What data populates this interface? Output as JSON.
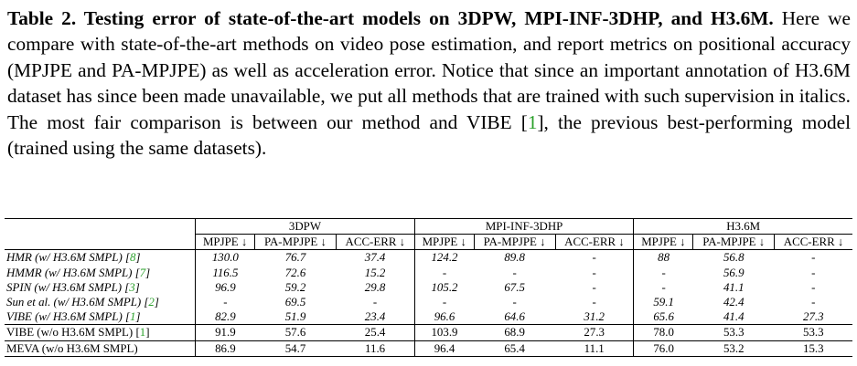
{
  "caption": {
    "label": "Table 2. Testing error of state-of-the-art models on 3DPW, MPI-INF-3DHP, and H3.6M.",
    "text_before_cite": "Here we compare with state-of-the-art methods on video pose estimation, and report metrics on positional accuracy (MPJPE and PA-MPJPE) as well as acceleration error. Notice that since an important annotation of H3.6M dataset has since been made unavailable, we put all methods that are trained with such supervision in italics. The most fair comparison is between our method and VIBE [",
    "cite": "1",
    "text_after_cite": "], the previous best-performing model (trained using the same datasets)."
  },
  "table": {
    "datasets": [
      "3DPW",
      "MPI-INF-3DHP",
      "H3.6M"
    ],
    "metrics": [
      "MPJPE ↓",
      "PA-MPJPE ↓",
      "ACC-ERR ↓",
      "MPJPE ↓",
      "PA-MPJPE ↓",
      "ACC-ERR ↓",
      "MPJPE ↓",
      "PA-MPJPE ↓",
      "ACC-ERR ↓"
    ],
    "rows": [
      {
        "name": "HMR (w/ H3.6M SMPL) [",
        "cite": "8",
        "values": [
          "130.0",
          "76.7",
          "37.4",
          "124.2",
          "89.8",
          "-",
          "88",
          "56.8",
          "-"
        ]
      },
      {
        "name": "HMMR (w/ H3.6M SMPL) [",
        "cite": "7",
        "values": [
          "116.5",
          "72.6",
          "15.2",
          "-",
          "-",
          "-",
          "-",
          "56.9",
          "-"
        ]
      },
      {
        "name": "SPIN (w/ H3.6M SMPL) [",
        "cite": "3",
        "values": [
          "96.9",
          "59.2",
          "29.8",
          "105.2",
          "67.5",
          "-",
          "-",
          "41.1",
          "-"
        ]
      },
      {
        "name": "Sun et al. (w/ H3.6M SMPL) [",
        "cite": "2",
        "values": [
          "-",
          "69.5",
          "-",
          "-",
          "-",
          "-",
          "59.1",
          "42.4",
          "-"
        ]
      },
      {
        "name": "VIBE (w/ H3.6M SMPL) [",
        "cite": "1",
        "values": [
          "82.9",
          "51.9",
          "23.4",
          "96.6",
          "64.6",
          "31.2",
          "65.6",
          "41.4",
          "27.3"
        ]
      },
      {
        "name": "VIBE (w/o H3.6M SMPL) [",
        "cite": "1",
        "values": [
          "91.9",
          "57.6",
          "25.4",
          "103.9",
          "68.9",
          "27.3",
          "78.0",
          "53.3",
          "53.3"
        ]
      },
      {
        "name": "MEVA (w/o H3.6M SMPL)",
        "cite": "",
        "values": [
          "86.9",
          "54.7",
          "11.6",
          "96.4",
          "65.4",
          "11.1",
          "76.0",
          "53.2",
          "15.3"
        ]
      }
    ]
  }
}
